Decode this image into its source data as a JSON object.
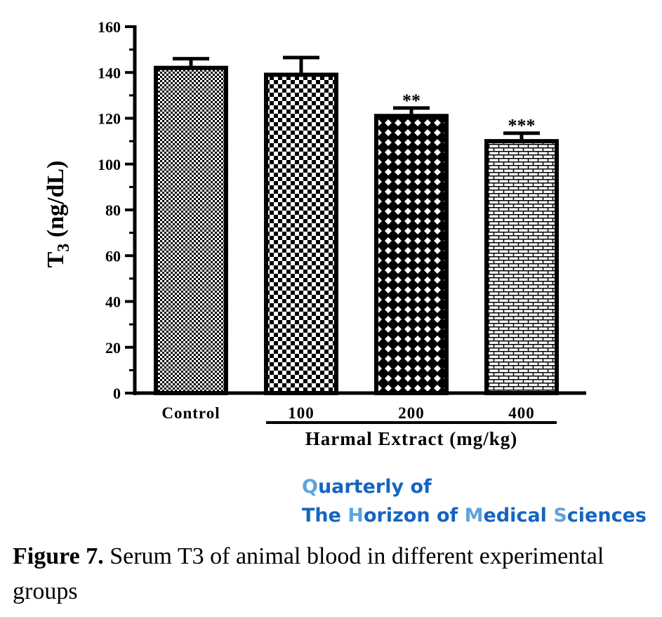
{
  "chart_data": {
    "type": "bar",
    "categories": [
      "Control",
      "100",
      "200",
      "400"
    ],
    "values": [
      142,
      139,
      121,
      110
    ],
    "error": [
      4,
      7.5,
      3.5,
      3.5
    ],
    "significance": [
      "",
      "",
      "**",
      "***"
    ],
    "fill_patterns": [
      "fine-checker",
      "checker",
      "diamond-lattice",
      "brick"
    ],
    "yticks": [
      "0",
      "20",
      "40",
      "60",
      "80",
      "100",
      "120",
      "140",
      "160"
    ],
    "ylim": [
      0,
      160
    ],
    "ylabel_main": "T",
    "ylabel_sub": "3",
    "ylabel_unit": " (ng/dL)",
    "group_label": "Harmal Extract (mg/kg)",
    "grid": false,
    "legend": "none"
  },
  "watermark": {
    "line1_parts": [
      {
        "t": "Q",
        "c": "lt"
      },
      {
        "t": "uarterly of",
        "c": "dk"
      }
    ],
    "line2_parts": [
      {
        "t": "The ",
        "c": "dk"
      },
      {
        "t": "H",
        "c": "lt"
      },
      {
        "t": "orizon of ",
        "c": "dk"
      },
      {
        "t": "M",
        "c": "lt"
      },
      {
        "t": "edical ",
        "c": "dk"
      },
      {
        "t": "S",
        "c": "lt"
      },
      {
        "t": "ciences",
        "c": "dk"
      }
    ]
  },
  "caption": {
    "label": "Figure 7.",
    "text": " Serum T3 of animal blood in different experimental groups"
  }
}
